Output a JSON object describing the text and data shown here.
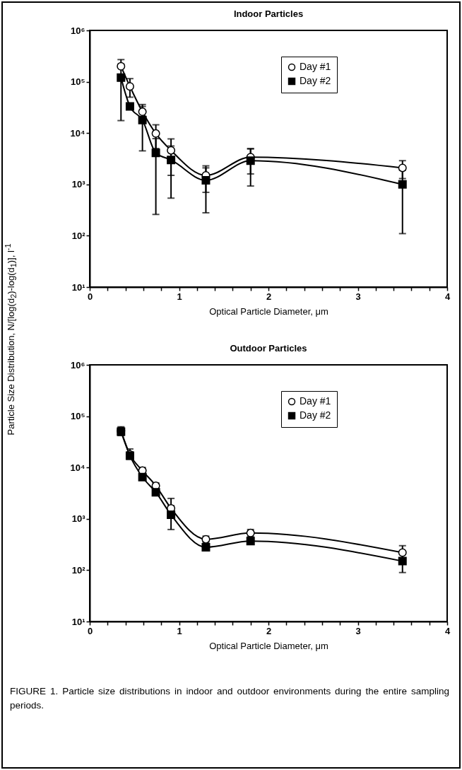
{
  "chart_data": [
    {
      "type": "line",
      "title": "Indoor Particles",
      "xlabel": "Optical Particle Diameter, μm",
      "ylabel": "Particle Size Distribution, N/[log(d$_{2}$)-log(d$_{1}$)], l$^{-1}$",
      "log": "y",
      "legend": "top right",
      "line_style": "solid",
      "xlim": [
        0,
        4
      ],
      "xticks": [
        0,
        {
          "value": 0.2,
          "label": null
        },
        {
          "value": 0.4,
          "label": null
        },
        {
          "value": 0.6,
          "label": null
        },
        {
          "value": 0.8,
          "label": null
        },
        1,
        {
          "value": 1.2,
          "label": null
        },
        {
          "value": 1.4,
          "label": null
        },
        {
          "value": 1.6,
          "label": null
        },
        {
          "value": 1.8,
          "label": null
        },
        2,
        {
          "value": 2.2,
          "label": null
        },
        {
          "value": 2.4,
          "label": null
        },
        {
          "value": 2.6,
          "label": null
        },
        {
          "value": 2.8,
          "label": null
        },
        3,
        {
          "value": 3.2,
          "label": null
        },
        {
          "value": 3.4,
          "label": null
        },
        {
          "value": 3.6,
          "label": null
        },
        {
          "value": 3.8,
          "label": null
        },
        4
      ],
      "ylim": [
        10,
        1000000
      ],
      "yticks": [
        {
          "value": 10,
          "label": "10¹"
        },
        {
          "value": 100,
          "label": "10²"
        },
        {
          "value": 1000,
          "label": "10³"
        },
        {
          "value": 10000,
          "label": "10⁴"
        },
        {
          "value": 100000,
          "label": "10⁵"
        },
        {
          "value": 1000000,
          "label": "10⁶"
        }
      ],
      "x": [
        0.35,
        0.45,
        0.59,
        0.74,
        0.91,
        1.3,
        1.8,
        3.5
      ],
      "series": [
        {
          "name": "Day #1",
          "color": "#000000",
          "marker": "circle",
          "values": [
            200000,
            81000,
            26000,
            9800,
            4600,
            1500,
            3400,
            2100
          ],
          "errors": [
            [
              200000,
              270000
            ],
            [
              50000,
              115000
            ],
            [
              16000,
              36000
            ],
            [
              5000,
              14500
            ],
            [
              1500,
              7700
            ],
            [
              700,
              2300
            ],
            [
              1600,
              5000
            ],
            [
              1300,
              2900
            ]
          ]
        },
        {
          "name": "Day #2",
          "color": "#000000",
          "marker": "square",
          "values": [
            120000,
            33000,
            18000,
            4100,
            3000,
            1200,
            2900,
            1000
          ],
          "errors": [
            [
              17500,
              220000
            ],
            null,
            [
              4500,
              33000
            ],
            [
              260,
              7800
            ],
            [
              540,
              5600
            ],
            [
              280,
              2100
            ],
            [
              930,
              4900
            ],
            [
              110,
              1900
            ]
          ]
        }
      ]
    },
    {
      "type": "line",
      "title": "Outdoor Particles",
      "xlabel": "Optical Particle Diameter, μm",
      "log": "y",
      "legend": "top right",
      "line_style": "solid",
      "xlim": [
        0,
        4
      ],
      "xticks": [
        0,
        {
          "value": 0.2,
          "label": null
        },
        {
          "value": 0.4,
          "label": null
        },
        {
          "value": 0.6,
          "label": null
        },
        {
          "value": 0.8,
          "label": null
        },
        1,
        {
          "value": 1.2,
          "label": null
        },
        {
          "value": 1.4,
          "label": null
        },
        {
          "value": 1.6,
          "label": null
        },
        {
          "value": 1.8,
          "label": null
        },
        2,
        {
          "value": 2.2,
          "label": null
        },
        {
          "value": 2.4,
          "label": null
        },
        {
          "value": 2.6,
          "label": null
        },
        {
          "value": 2.8,
          "label": null
        },
        3,
        {
          "value": 3.2,
          "label": null
        },
        {
          "value": 3.4,
          "label": null
        },
        {
          "value": 3.6,
          "label": null
        },
        {
          "value": 3.8,
          "label": null
        },
        4
      ],
      "ylim": [
        10,
        1000000
      ],
      "yticks": [
        {
          "value": 10,
          "label": "10¹"
        },
        {
          "value": 100,
          "label": "10²"
        },
        {
          "value": 1000,
          "label": "10³"
        },
        {
          "value": 10000,
          "label": "10⁴"
        },
        {
          "value": 100000,
          "label": "10⁵"
        },
        {
          "value": 1000000,
          "label": "10⁶"
        }
      ],
      "x": [
        0.35,
        0.45,
        0.59,
        0.74,
        0.91,
        1.3,
        1.8,
        3.5
      ],
      "series": [
        {
          "name": "Day #1",
          "color": "#000000",
          "marker": "circle",
          "values": [
            52000,
            18000,
            8700,
            4400,
            1600,
            400,
            530,
            220
          ],
          "errors": [
            [
              43000,
              62000
            ],
            [
              15000,
              23000
            ],
            [
              7500,
              10000
            ],
            [
              3800,
              5000
            ],
            [
              1600,
              2500
            ],
            [
              350,
              460
            ],
            [
              450,
              620
            ],
            [
              170,
              300
            ]
          ]
        },
        {
          "name": "Day #2",
          "color": "#000000",
          "marker": "square",
          "values": [
            50000,
            17000,
            6500,
            3300,
            1200,
            280,
            370,
            150
          ],
          "errors": [
            [
              42000,
              60000
            ],
            [
              14500,
              20000
            ],
            [
              5700,
              7500
            ],
            [
              2900,
              3800
            ],
            [
              620,
              1800
            ],
            [
              240,
              320
            ],
            [
              320,
              430
            ],
            [
              90,
              220
            ]
          ]
        }
      ],
      "annotations": [
        "FIGURE 1. Particle size distributions in indoor and outdoor environments during the entire sampling periods."
      ]
    }
  ]
}
